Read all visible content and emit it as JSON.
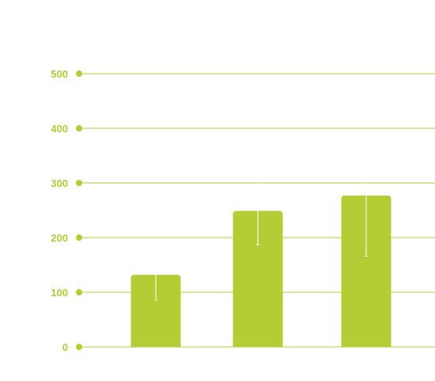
{
  "colors": {
    "accent": "#b5cd35",
    "error_bar": "#ffffff"
  },
  "chart_data": {
    "type": "bar",
    "categories": [
      "",
      "",
      ""
    ],
    "values": [
      132,
      249,
      277
    ],
    "error_bars": [
      {
        "low": 86,
        "high": 132
      },
      {
        "low": 187,
        "high": 300
      },
      {
        "low": 166,
        "high": 300
      }
    ],
    "title": "",
    "xlabel": "",
    "ylabel": "",
    "ylim": [
      0,
      500
    ],
    "yticks": [
      0,
      100,
      200,
      300,
      400,
      500
    ],
    "ytick_labels": [
      "0",
      "100",
      "200",
      "300",
      "400",
      "500"
    ],
    "grid": true,
    "legend": "none"
  }
}
